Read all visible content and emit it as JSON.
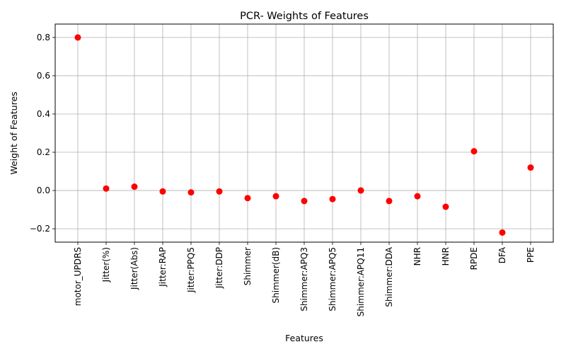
{
  "chart_data": {
    "type": "scatter",
    "title": "PCR- Weights of Features",
    "xlabel": "Features",
    "ylabel": "Weight of Features",
    "categories": [
      "motor_UPDRS",
      "Jitter(%)",
      "Jitter(Abs)",
      "Jitter:RAP",
      "Jitter:PPQ5",
      "Jitter:DDP",
      "Shimmer",
      "Shimmer(dB)",
      "Shimmer:APQ3",
      "Shimmer:APQ5",
      "Shimmer:APQ11",
      "Shimmer:DDA",
      "NHR",
      "HNR",
      "RPDE",
      "DFA",
      "PPE"
    ],
    "values": [
      0.8,
      0.01,
      0.02,
      -0.005,
      -0.01,
      -0.005,
      -0.04,
      -0.03,
      -0.055,
      -0.045,
      0.0,
      -0.055,
      -0.03,
      -0.085,
      0.205,
      -0.22,
      0.12
    ],
    "ylim": [
      -0.27,
      0.87
    ],
    "yticks": [
      -0.2,
      0.0,
      0.2,
      0.4,
      0.6,
      0.8
    ],
    "ytick_labels": [
      "−0.2",
      "0.0",
      "0.2",
      "0.4",
      "0.6",
      "0.8"
    ],
    "grid": true,
    "marker_color": "#ff0000"
  }
}
